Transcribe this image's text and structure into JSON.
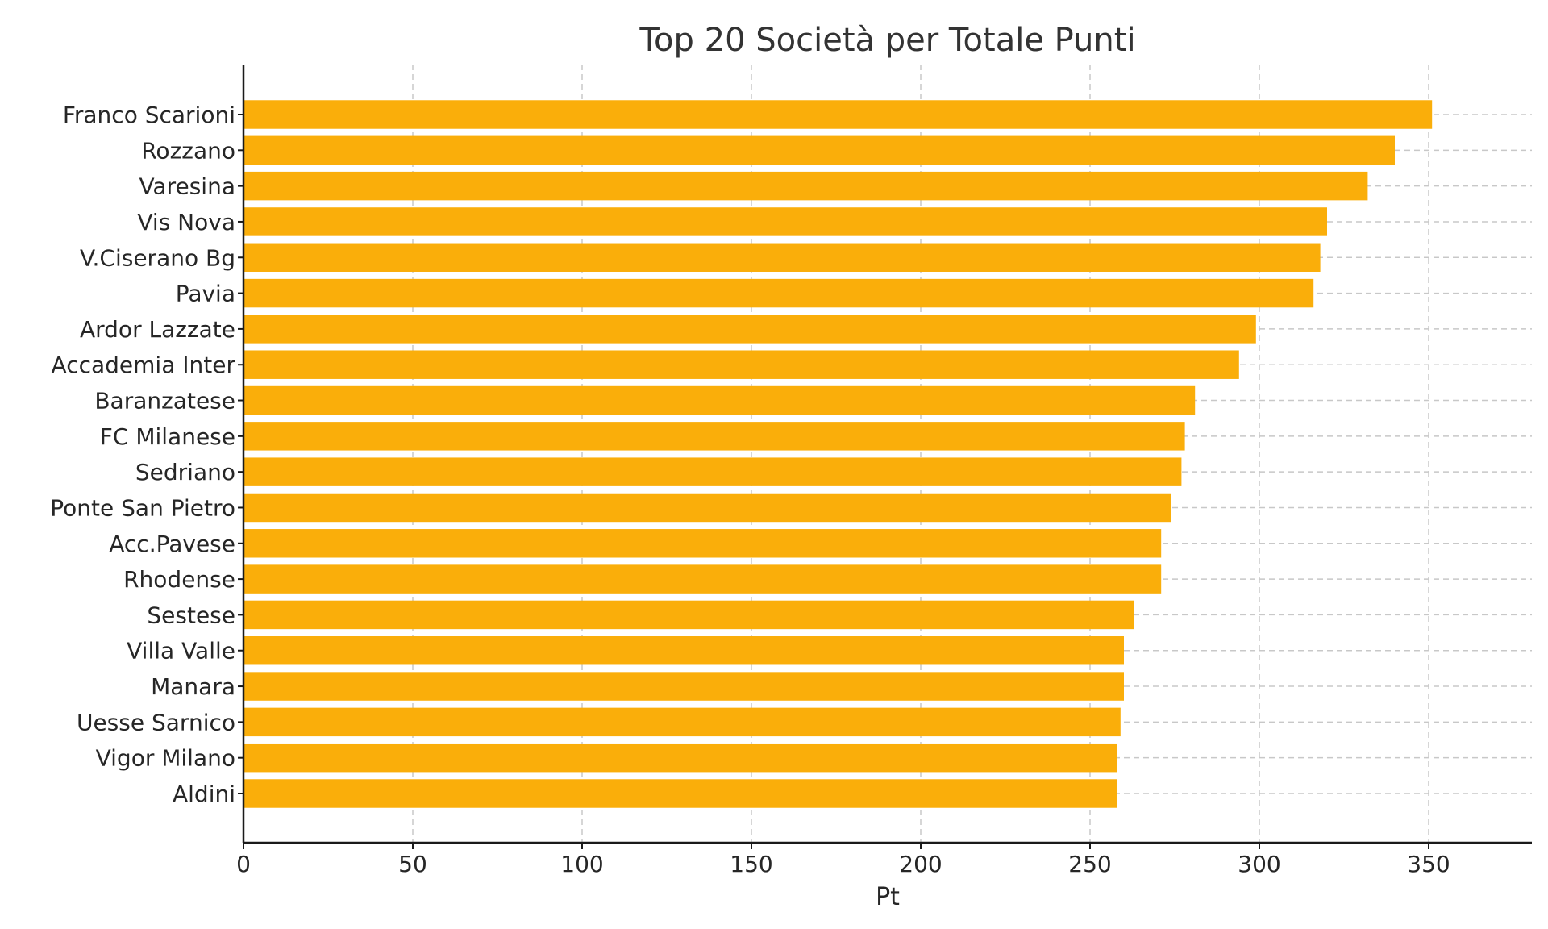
{
  "chart_data": {
    "type": "bar",
    "orientation": "horizontal",
    "title": "Top 20 Società per Totale Punti",
    "xlabel": "Pt",
    "ylabel": "",
    "xlim": [
      0,
      369
    ],
    "xticks": [
      0,
      50,
      100,
      150,
      200,
      250,
      300,
      350
    ],
    "grid": true,
    "bar_color": "#FAAE0A",
    "categories": [
      "Franco Scarioni",
      "Rozzano",
      "Varesina",
      "Vis Nova",
      "V.Ciserano Bg",
      "Pavia",
      "Ardor Lazzate",
      "Accademia Inter",
      "Baranzatese",
      "FC Milanese",
      "Sedriano",
      "Ponte San Pietro",
      "Acc.Pavese",
      "Rhodense",
      "Sestese",
      "Villa Valle",
      "Manara",
      "Uesse Sarnico",
      "Vigor Milano",
      "Aldini"
    ],
    "values": [
      351,
      340,
      332,
      320,
      318,
      316,
      299,
      294,
      281,
      278,
      277,
      274,
      271,
      271,
      263,
      260,
      260,
      259,
      258,
      258
    ]
  }
}
